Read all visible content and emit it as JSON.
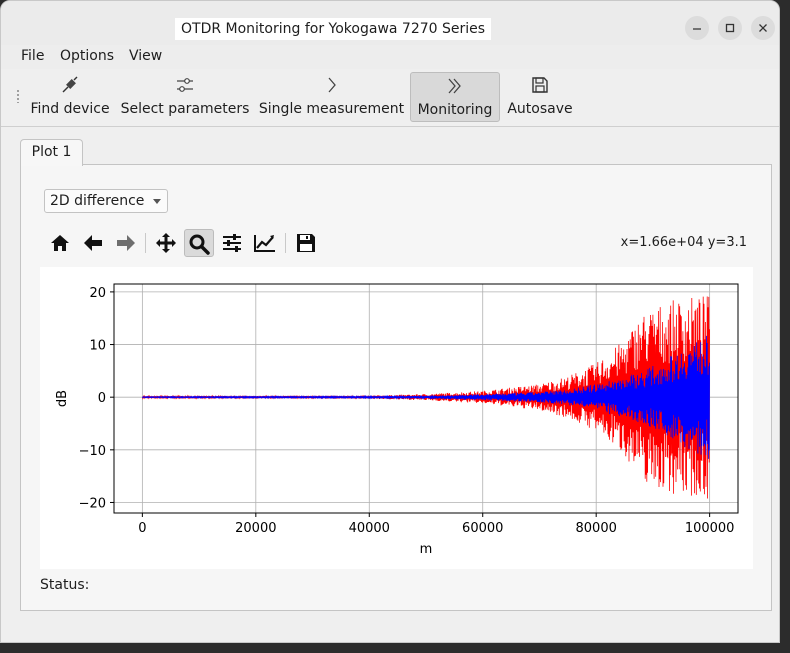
{
  "window": {
    "title": "OTDR Monitoring for Yokogawa 7270 Series"
  },
  "menu": [
    "File",
    "Options",
    "View"
  ],
  "toolbar": [
    {
      "label": "Find device",
      "icon": "connector-icon"
    },
    {
      "label": "Select parameters",
      "icon": "sliders-icon"
    },
    {
      "label": "Single measurement",
      "icon": "chevron-right-icon"
    },
    {
      "label": "Monitoring",
      "icon": "double-chevron-icon",
      "active": true
    },
    {
      "label": "Autosave",
      "icon": "save-icon"
    }
  ],
  "tabs": [
    {
      "label": "Plot 1",
      "selected": true
    }
  ],
  "plot_mode": {
    "selected": "2D difference"
  },
  "nav_icons": [
    "home-icon",
    "back-icon",
    "forward-icon",
    "pan-icon",
    "zoom-icon",
    "configure-subplots-icon",
    "edit-axes-icon",
    "save-figure-icon"
  ],
  "coords_readout": "x=1.66e+04 y=3.1",
  "status": {
    "label": "Status:",
    "value": ""
  },
  "chart_data": {
    "type": "line",
    "xlabel": "m",
    "ylabel": "dB",
    "xlim": [
      -5000,
      105000
    ],
    "ylim": [
      -22,
      21.5
    ],
    "xticks": [
      0,
      20000,
      40000,
      60000,
      80000,
      100000
    ],
    "yticks": [
      -20,
      -10,
      0,
      10,
      20
    ],
    "grid": true,
    "x_range": [
      0,
      100000
    ],
    "series": [
      {
        "color": "#ff0000",
        "envelope_x": [
          0,
          40000,
          50000,
          60000,
          70000,
          75000,
          80000,
          85000,
          88000,
          92000,
          96000,
          100000
        ],
        "envelope_y": [
          0.2,
          0.3,
          0.6,
          1.2,
          2.5,
          4.0,
          6.5,
          11.0,
          16.0,
          18.0,
          19.0,
          19.5
        ]
      },
      {
        "color": "#0000ff",
        "envelope_x": [
          0,
          40000,
          50000,
          60000,
          70000,
          75000,
          80000,
          85000,
          88000,
          92000,
          96000,
          100000
        ],
        "envelope_y": [
          0.1,
          0.15,
          0.3,
          0.6,
          1.0,
          1.5,
          2.5,
          4.0,
          5.0,
          7.0,
          10.0,
          12.0
        ]
      }
    ]
  }
}
